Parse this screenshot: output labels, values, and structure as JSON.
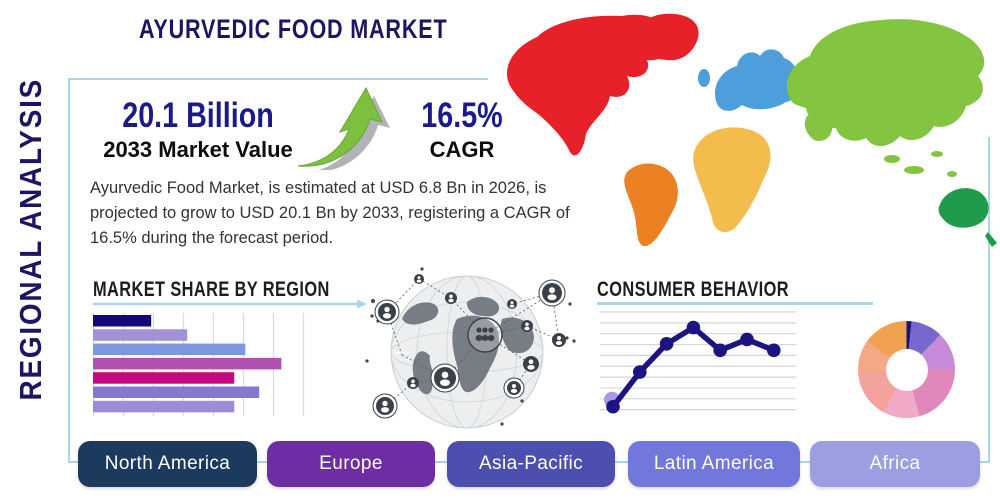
{
  "header": {
    "main_title": "AYURVEDIC FOOD MARKET",
    "side_title": "REGIONAL ANALYSIS"
  },
  "stats": {
    "market_value": "20.1 Billion",
    "market_value_label": "2033 Market Value",
    "cagr_value": "16.5%",
    "cagr_label": "CAGR"
  },
  "description": "Ayurvedic Food Market, is estimated at USD 6.8 Bn in 2026, is projected to grow to USD 20.1 Bn by 2033, registering a CAGR of 16.5% during the forecast period.",
  "sections": {
    "market_share_title": "MARKET SHARE BY REGION",
    "consumer_behavior_title": "CONSUMER BEHAVIOR"
  },
  "region_buttons": [
    {
      "label": "North America",
      "color": "#1b3a5e"
    },
    {
      "label": "Europe",
      "color": "#6e2da2"
    },
    {
      "label": "Asia-Pacific",
      "color": "#4d4fae"
    },
    {
      "label": "Latin America",
      "color": "#7277dc"
    },
    {
      "label": "Africa",
      "color": "#9b9fe2"
    }
  ],
  "theme": {
    "accent_navy": "#1b1566",
    "card_border_blue": "#a9d6ec",
    "text_dark": "#333333",
    "growth_arrow_green": "#7dbf3f",
    "growth_arrow_shadow": "#a2a7ab"
  },
  "chart_data": [
    {
      "type": "bar",
      "title": "MARKET SHARE BY REGION",
      "orientation": "horizontal",
      "categories": [
        "",
        "",
        "",
        "",
        "",
        "",
        ""
      ],
      "values": [
        21,
        34,
        55,
        68,
        51,
        60,
        51
      ],
      "xlabel": "",
      "ylabel": "",
      "xlim": [
        0,
        100
      ],
      "grid": "vertical",
      "colors": [
        "#12087a",
        "#a391d6",
        "#7d96dd",
        "#b050b0",
        "#c40882",
        "#8678d2",
        "#9c8bd9"
      ]
    },
    {
      "type": "line",
      "title": "CONSUMER BEHAVIOR",
      "x": [
        1,
        2,
        3,
        4,
        5,
        6,
        7
      ],
      "values": [
        0.3,
        3.5,
        6.1,
        7.6,
        5.5,
        6.5,
        5.5
      ],
      "ylim": [
        0,
        9
      ],
      "grid": "horizontal",
      "line_color": "#1c1480",
      "marker": "circle",
      "first_point_halo_color": "#a99ae0"
    },
    {
      "type": "pie",
      "variant": "donut",
      "start_angle_deg": -6,
      "segments": [
        {
          "value": 3.3,
          "color": "#1a1277"
        },
        {
          "value": 10.6,
          "color": "#7668cf"
        },
        {
          "value": 12.8,
          "color": "#c78ad8"
        },
        {
          "value": 20.6,
          "color": "#e187bb"
        },
        {
          "value": 12.2,
          "color": "#f0a9c7"
        },
        {
          "value": 16.1,
          "color": "#f4a29c"
        },
        {
          "value": 11.1,
          "color": "#f5a886"
        },
        {
          "value": 13.3,
          "color": "#f0a14f"
        }
      ]
    }
  ],
  "map": {
    "regions": [
      {
        "name": "North America",
        "color": "#e62129"
      },
      {
        "name": "Greenland",
        "color": "#e62129"
      },
      {
        "name": "South America",
        "color": "#ec8123"
      },
      {
        "name": "Europe",
        "color": "#4d9edb"
      },
      {
        "name": "Africa",
        "color": "#f3bd4d"
      },
      {
        "name": "Asia",
        "color": "#83c441"
      },
      {
        "name": "Australia",
        "color": "#209b4c"
      },
      {
        "name": "New Zealand",
        "color": "#209b4c"
      }
    ]
  }
}
